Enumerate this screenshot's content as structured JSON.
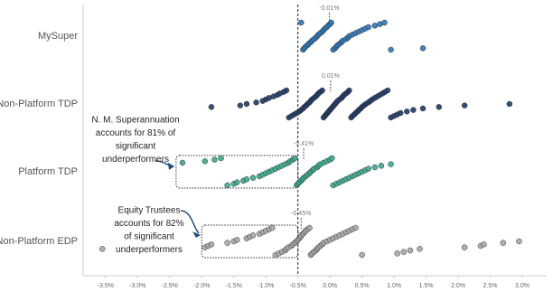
{
  "chart_data": {
    "type": "strip",
    "categories": [
      "MySuper",
      "Non-Platform TDP",
      "Platform TDP",
      "Non-Platform EDP"
    ],
    "colors": [
      "#2e75b6",
      "#1f3864",
      "#3aa88f",
      "#a6a6a6"
    ],
    "values": [
      [
        -0.45,
        -0.42,
        -0.4,
        -0.38,
        -0.35,
        -0.33,
        -0.3,
        -0.28,
        -0.25,
        -0.22,
        -0.2,
        -0.18,
        -0.15,
        -0.12,
        -0.1,
        -0.08,
        -0.05,
        -0.03,
        0,
        0.02,
        0.05,
        0.08,
        0.1,
        0.12,
        0.15,
        0.18,
        0.2,
        0.25,
        0.28,
        0.3,
        0.35,
        0.4,
        0.45,
        0.5,
        0.55,
        0.6,
        0.7,
        0.78,
        0.85,
        0.95,
        1.45
      ],
      [
        -1.85,
        -1.4,
        -1.3,
        -1.15,
        -1.05,
        -1.0,
        -0.95,
        -0.88,
        -0.82,
        -0.78,
        -0.72,
        -0.68,
        -0.64,
        -0.6,
        -0.56,
        -0.52,
        -0.48,
        -0.45,
        -0.42,
        -0.4,
        -0.37,
        -0.35,
        -0.32,
        -0.3,
        -0.28,
        -0.25,
        -0.22,
        -0.2,
        -0.18,
        -0.15,
        -0.12,
        -0.1,
        -0.08,
        -0.06,
        -0.04,
        -0.02,
        0,
        0.02,
        0.04,
        0.06,
        0.08,
        0.1,
        0.12,
        0.15,
        0.18,
        0.2,
        0.22,
        0.25,
        0.28,
        0.3,
        0.33,
        0.35,
        0.38,
        0.4,
        0.43,
        0.45,
        0.48,
        0.5,
        0.53,
        0.56,
        0.6,
        0.63,
        0.66,
        0.7,
        0.74,
        0.78,
        0.82,
        0.86,
        0.9,
        0.95,
        1.0,
        1.05,
        1.1,
        1.2,
        1.3,
        1.45,
        1.7,
        2.1,
        2.8
      ],
      [
        -2.3,
        -1.95,
        -1.8,
        -1.7,
        -1.6,
        -1.5,
        -1.45,
        -1.35,
        -1.3,
        -1.2,
        -1.1,
        -1.05,
        -1.0,
        -0.95,
        -0.9,
        -0.85,
        -0.8,
        -0.75,
        -0.7,
        -0.65,
        -0.62,
        -0.58,
        -0.55,
        -0.52,
        -0.5,
        -0.48,
        -0.45,
        -0.43,
        -0.41,
        -0.38,
        -0.35,
        -0.32,
        -0.3,
        -0.27,
        -0.25,
        -0.2,
        -0.18,
        -0.15,
        -0.1,
        -0.05,
        0,
        0.03,
        0.05,
        0.1,
        0.15,
        0.2,
        0.25,
        0.3,
        0.35,
        0.4,
        0.45,
        0.5,
        0.55,
        0.6,
        0.7,
        0.8,
        0.95
      ],
      [
        -3.55,
        -1.95,
        -1.9,
        -1.85,
        -1.6,
        -1.5,
        -1.45,
        -1.3,
        -1.25,
        -1.2,
        -1.1,
        -1.05,
        -1.0,
        -0.95,
        -0.9,
        -0.85,
        -0.8,
        -0.75,
        -0.7,
        -0.68,
        -0.65,
        -0.6,
        -0.58,
        -0.55,
        -0.52,
        -0.5,
        -0.48,
        -0.46,
        -0.45,
        -0.42,
        -0.4,
        -0.38,
        -0.35,
        -0.32,
        -0.3,
        -0.28,
        -0.25,
        -0.22,
        -0.2,
        -0.18,
        -0.15,
        -0.12,
        -0.1,
        -0.05,
        0,
        0.05,
        0.1,
        0.15,
        0.2,
        0.25,
        0.3,
        0.35,
        0.4,
        0.5,
        1.05,
        1.15,
        1.25,
        1.4,
        2.1,
        2.35,
        2.4,
        2.7,
        2.95
      ]
    ],
    "medians": [
      -0.01,
      0.01,
      -0.41,
      -0.45
    ],
    "median_labels": [
      "-0.01%",
      "0.01%",
      "-0.41%",
      "-0.45%"
    ],
    "reference_line": -0.5,
    "xlim": [
      -3.85,
      3.38
    ],
    "xticks": [
      {
        "value": -3.5,
        "label": "-3.5%"
      },
      {
        "value": -3.0,
        "label": "-3.0%"
      },
      {
        "value": -2.5,
        "label": "-2.5%"
      },
      {
        "value": -2.0,
        "label": "-2.0%"
      },
      {
        "value": -1.5,
        "label": "-1.5%"
      },
      {
        "value": -1.0,
        "label": "-1.0%"
      },
      {
        "value": -0.5,
        "label": "-0.5%"
      },
      {
        "value": 0.0,
        "label": "0.0%"
      },
      {
        "value": 0.5,
        "label": "0.5%"
      },
      {
        "value": 1.0,
        "label": "1.0%"
      },
      {
        "value": 1.5,
        "label": "1.5%"
      },
      {
        "value": 2.0,
        "label": "2.0%"
      },
      {
        "value": 2.5,
        "label": "2.5%"
      },
      {
        "value": 3.0,
        "label": "3.0%"
      }
    ],
    "annotations": [
      {
        "lines": [
          "N. M. Superannuation",
          "accounts for 81% of",
          "significant",
          "underperformers"
        ],
        "category": 2,
        "range": [
          -2.4,
          -0.5
        ]
      },
      {
        "lines": [
          "Equity Trustees",
          "accounts for 82%",
          "of significant",
          "underperformers"
        ],
        "category": 3,
        "range": [
          -2.0,
          -0.5
        ]
      }
    ]
  }
}
